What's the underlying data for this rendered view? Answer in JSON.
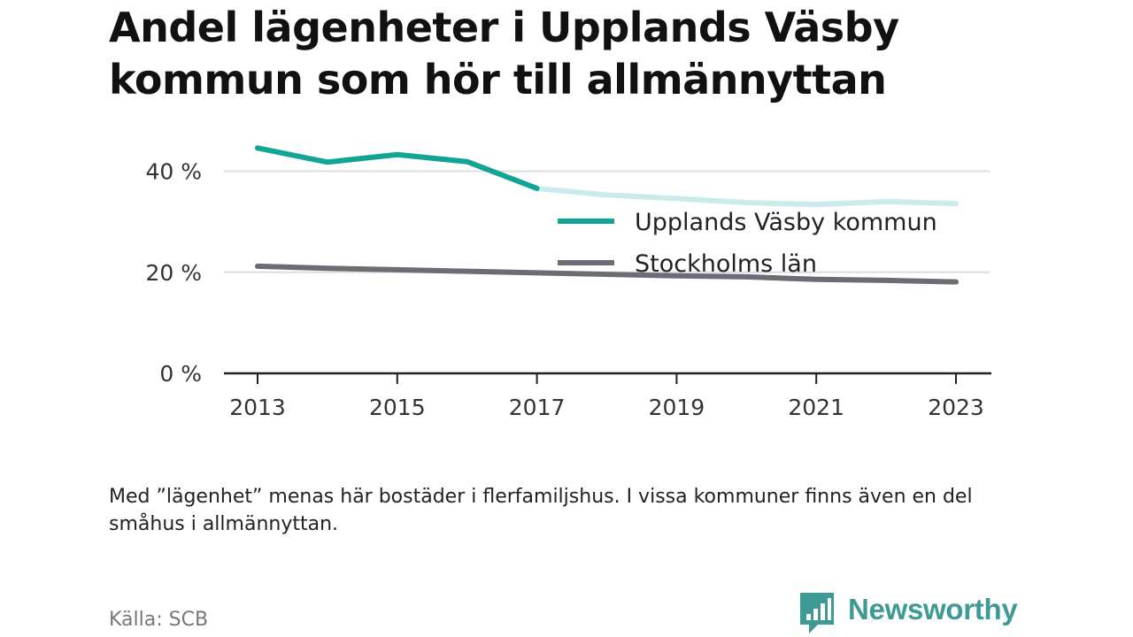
{
  "title": "Andel lägenheter i Upplands Väsby kommun som hör till allmännyttan",
  "note": "Med ”lägenhet” menas här bostäder i flerfamiljshus. I vissa kommuner finns även en del småhus i allmännyttan.",
  "source": "Källa: SCB",
  "brand": {
    "name": "Newsworthy",
    "color": "#3d9a94"
  },
  "chart_data": {
    "type": "line",
    "title": "Andel lägenheter i Upplands Väsby kommun som hör till allmännyttan",
    "xlabel": "",
    "ylabel": "",
    "x": [
      2013,
      2014,
      2015,
      2016,
      2017,
      2018,
      2019,
      2020,
      2021,
      2022,
      2023
    ],
    "x_ticks": [
      "2013",
      "2015",
      "2017",
      "2019",
      "2021",
      "2023"
    ],
    "y_ticks": [
      "0 %",
      "20 %",
      "40 %"
    ],
    "ylim": [
      0,
      45
    ],
    "grid": true,
    "legend_position": "top-right",
    "series": [
      {
        "name": "Upplands Väsby kommun",
        "color": "#12a596",
        "faded_color": "#c9ecea",
        "values": [
          44.6,
          41.8,
          43.3,
          41.9,
          36.6,
          35.3,
          34.6,
          33.8,
          33.4,
          34.0,
          33.6
        ]
      },
      {
        "name": "Stockholms län",
        "color": "#6c6c74",
        "values": [
          21.2,
          20.8,
          20.5,
          20.2,
          19.9,
          19.6,
          19.3,
          19.1,
          18.6,
          18.4,
          18.1
        ]
      }
    ]
  }
}
